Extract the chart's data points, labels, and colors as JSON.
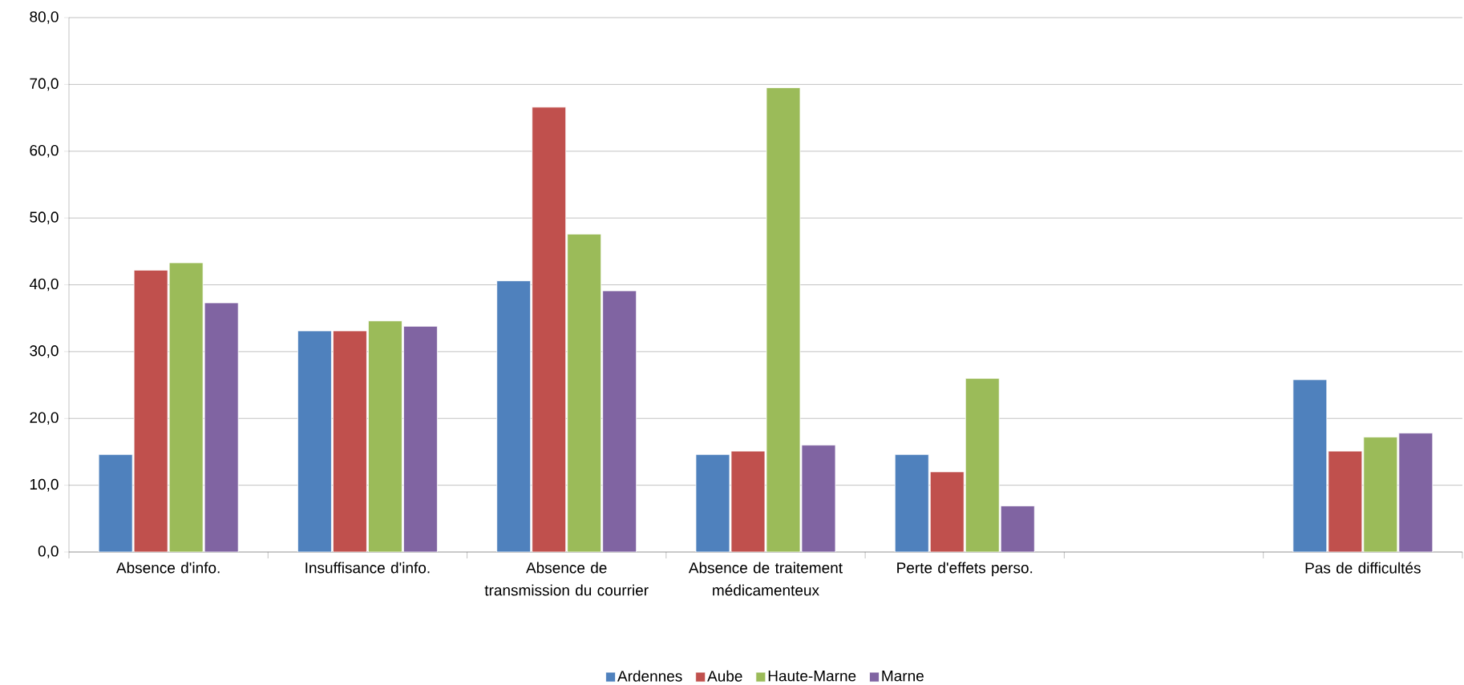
{
  "chart_data": {
    "type": "bar",
    "categories": [
      "Absence d'info.",
      "Insuffisance d'info.",
      "Absence de transmission du courrier",
      "Absence de traitement médicamenteux",
      "Perte d'effets perso.",
      null,
      "Pas de difficultés"
    ],
    "series": [
      {
        "name": "Ardennes",
        "color": "#4f81bd",
        "values": [
          14.6,
          33.1,
          40.6,
          14.6,
          14.6,
          null,
          25.8
        ]
      },
      {
        "name": "Aube",
        "color": "#c0504d",
        "values": [
          42.2,
          33.1,
          66.6,
          15.1,
          12.0,
          null,
          15.1
        ]
      },
      {
        "name": "Haute-Marne",
        "color": "#9bbb59",
        "values": [
          43.3,
          34.6,
          47.6,
          69.5,
          26.0,
          null,
          17.2
        ]
      },
      {
        "name": "Marne",
        "color": "#8064a2",
        "values": [
          37.3,
          33.8,
          39.1,
          16.0,
          6.9,
          null,
          17.8
        ]
      }
    ],
    "ylim": [
      0,
      80
    ],
    "yticks": [
      {
        "value": 0,
        "label": "0,0"
      },
      {
        "value": 10,
        "label": "10,0"
      },
      {
        "value": 20,
        "label": "20,0"
      },
      {
        "value": 30,
        "label": "30,0"
      },
      {
        "value": 40,
        "label": "40,0"
      },
      {
        "value": 50,
        "label": "50,0"
      },
      {
        "value": 60,
        "label": "60,0"
      },
      {
        "value": 70,
        "label": "70,0"
      },
      {
        "value": 80,
        "label": "80,0"
      }
    ],
    "grid": "y",
    "legend": "bottom"
  }
}
